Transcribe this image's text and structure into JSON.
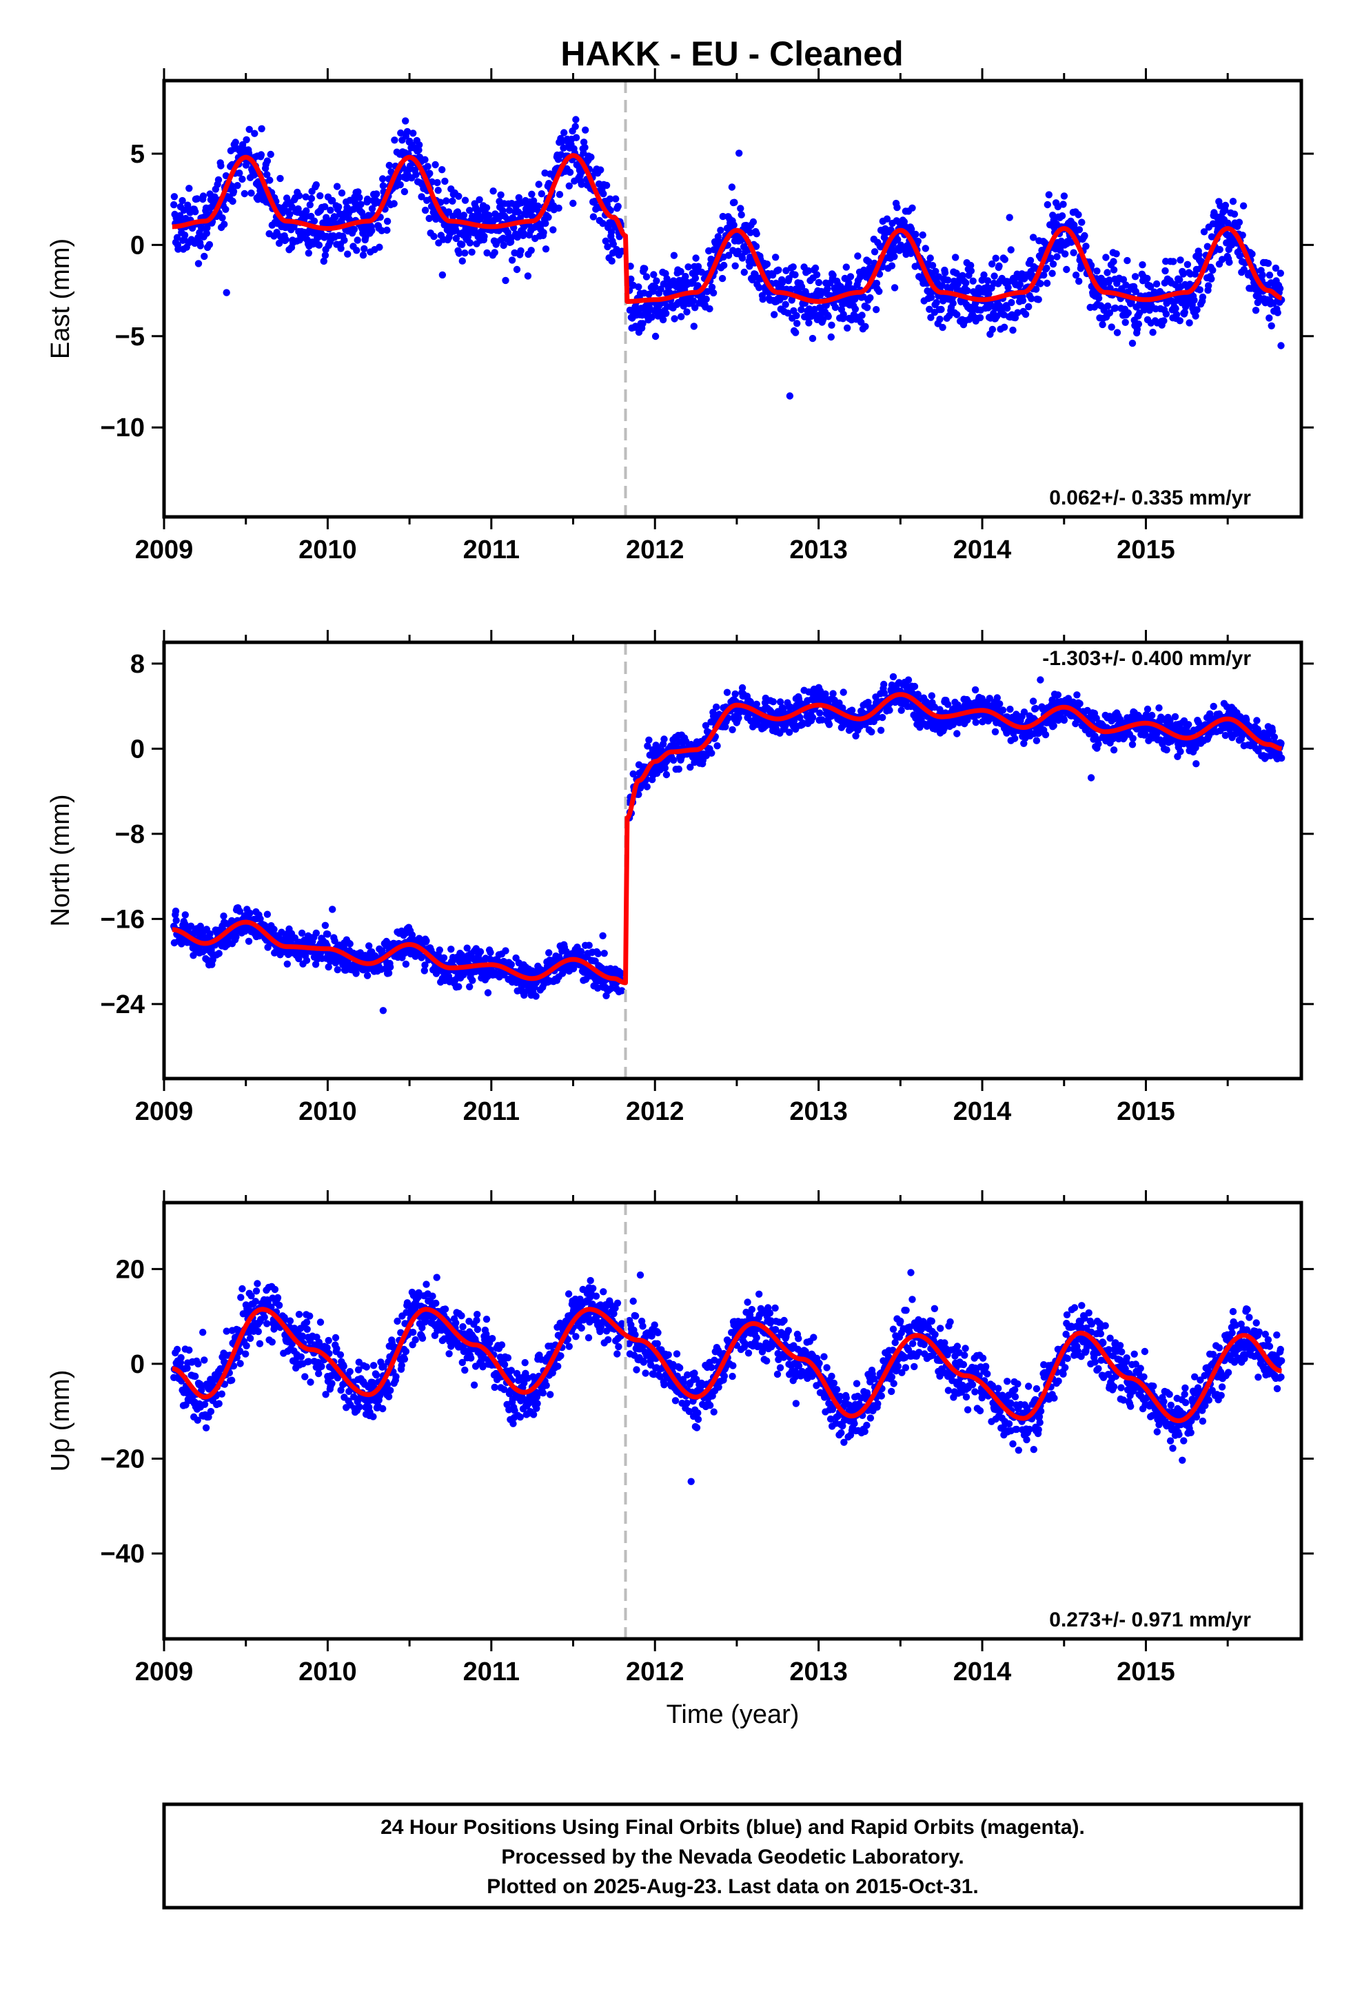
{
  "title": "HAKK  - EU - Cleaned",
  "colors": {
    "final_orbits": "#0000ff",
    "model": "#ff0000",
    "offset_line": "#bdbdbd",
    "frame": "#000000"
  },
  "chart_data": [
    {
      "type": "scatter",
      "component": "east",
      "ylabel": "East (mm)",
      "xlabel": "",
      "xlim": [
        2009.0,
        2015.95
      ],
      "ylim": [
        -14.9,
        9.0
      ],
      "xticks": [
        2009,
        2010,
        2011,
        2012,
        2013,
        2014,
        2015
      ],
      "yticks": [
        5,
        0,
        -5,
        -10
      ],
      "ytick_labels": [
        "5",
        "0",
        "−5",
        "−10"
      ],
      "offset_epoch": 2011.82,
      "rate_text": "0.062+/- 0.335 mm/yr",
      "rate_position": "bottom-right",
      "series": [
        {
          "name": "Final Orbits",
          "kind": "points"
        },
        {
          "name": "Model",
          "kind": "line",
          "x": [
            2009.05,
            2009.25,
            2009.5,
            2009.75,
            2010.0,
            2010.25,
            2010.5,
            2010.75,
            2011.0,
            2011.25,
            2011.5,
            2011.75,
            2011.82,
            2011.83,
            2012.0,
            2012.25,
            2012.5,
            2012.75,
            2013.0,
            2013.25,
            2013.5,
            2013.75,
            2014.0,
            2014.25,
            2014.5,
            2014.75,
            2015.0,
            2015.25,
            2015.5,
            2015.75,
            2015.83
          ],
          "y": [
            1.0,
            1.3,
            4.8,
            1.3,
            0.9,
            1.3,
            4.8,
            1.3,
            1.0,
            1.3,
            4.9,
            1.5,
            0.5,
            -3.1,
            -3.0,
            -2.6,
            0.8,
            -2.6,
            -3.1,
            -2.6,
            0.8,
            -2.6,
            -3.0,
            -2.6,
            0.9,
            -2.6,
            -3.0,
            -2.6,
            0.9,
            -2.5,
            -2.9
          ]
        }
      ]
    },
    {
      "type": "scatter",
      "component": "north",
      "ylabel": "North (mm)",
      "xlabel": "",
      "xlim": [
        2009.0,
        2015.95
      ],
      "ylim": [
        -31.0,
        10.0
      ],
      "xticks": [
        2009,
        2010,
        2011,
        2012,
        2013,
        2014,
        2015
      ],
      "yticks": [
        8,
        0,
        -8,
        -16,
        -24
      ],
      "ytick_labels": [
        "8",
        "0",
        "−8",
        "−16",
        "−24"
      ],
      "offset_epoch": 2011.82,
      "rate_text": "-1.303+/- 0.400 mm/yr",
      "rate_position": "top-right",
      "series": [
        {
          "name": "Final Orbits",
          "kind": "points"
        },
        {
          "name": "Model",
          "kind": "line",
          "x": [
            2009.05,
            2009.25,
            2009.5,
            2009.75,
            2010.0,
            2010.25,
            2010.5,
            2010.75,
            2011.0,
            2011.25,
            2011.5,
            2011.75,
            2011.82,
            2011.83,
            2011.9,
            2012.0,
            2012.1,
            2012.25,
            2012.5,
            2012.75,
            2013.0,
            2013.25,
            2013.5,
            2013.75,
            2014.0,
            2014.25,
            2014.5,
            2014.75,
            2015.0,
            2015.25,
            2015.5,
            2015.75,
            2015.83
          ],
          "y": [
            -17.0,
            -18.3,
            -16.3,
            -18.6,
            -18.8,
            -20.2,
            -18.4,
            -20.6,
            -20.3,
            -21.6,
            -19.8,
            -21.6,
            -22.0,
            -6.5,
            -3.0,
            -1.2,
            -0.3,
            -0.1,
            4.1,
            2.8,
            4.1,
            2.8,
            5.1,
            3.0,
            3.6,
            2.0,
            3.9,
            1.6,
            2.4,
            1.0,
            2.8,
            0.4,
            0.0
          ]
        }
      ]
    },
    {
      "type": "scatter",
      "component": "up",
      "ylabel": "Up (mm)",
      "xlabel": "Time (year)",
      "xlim": [
        2009.0,
        2015.95
      ],
      "ylim": [
        -58.0,
        34.0
      ],
      "xticks": [
        2009,
        2010,
        2011,
        2012,
        2013,
        2014,
        2015
      ],
      "yticks": [
        20,
        0,
        -20,
        -40
      ],
      "ytick_labels": [
        "20",
        "0",
        "−20",
        "−40"
      ],
      "offset_epoch": 2011.82,
      "rate_text": "0.273+/- 0.971 mm/yr",
      "rate_position": "bottom-right",
      "series": [
        {
          "name": "Final Orbits",
          "kind": "points"
        },
        {
          "name": "Model",
          "kind": "line",
          "x": [
            2009.05,
            2009.25,
            2009.6,
            2009.9,
            2010.25,
            2010.6,
            2010.9,
            2011.2,
            2011.6,
            2011.9,
            2012.25,
            2012.6,
            2012.9,
            2013.2,
            2013.6,
            2013.9,
            2014.25,
            2014.6,
            2014.9,
            2015.2,
            2015.6,
            2015.83
          ],
          "y": [
            -1.0,
            -7.0,
            11.5,
            3.0,
            -6.5,
            11.5,
            4.0,
            -6.0,
            11.5,
            5.0,
            -7.0,
            8.5,
            1.0,
            -11.0,
            6.0,
            -2.5,
            -11.5,
            6.5,
            -3.0,
            -12.0,
            6.0,
            -1.5
          ]
        }
      ]
    }
  ],
  "footer": {
    "line1": "24 Hour Positions Using Final Orbits (blue) and Rapid Orbits (magenta).",
    "line2": "Processed by the Nevada Geodetic Laboratory.",
    "line3": "Plotted on 2025-Aug-23. Last data on 2015-Oct-31."
  }
}
